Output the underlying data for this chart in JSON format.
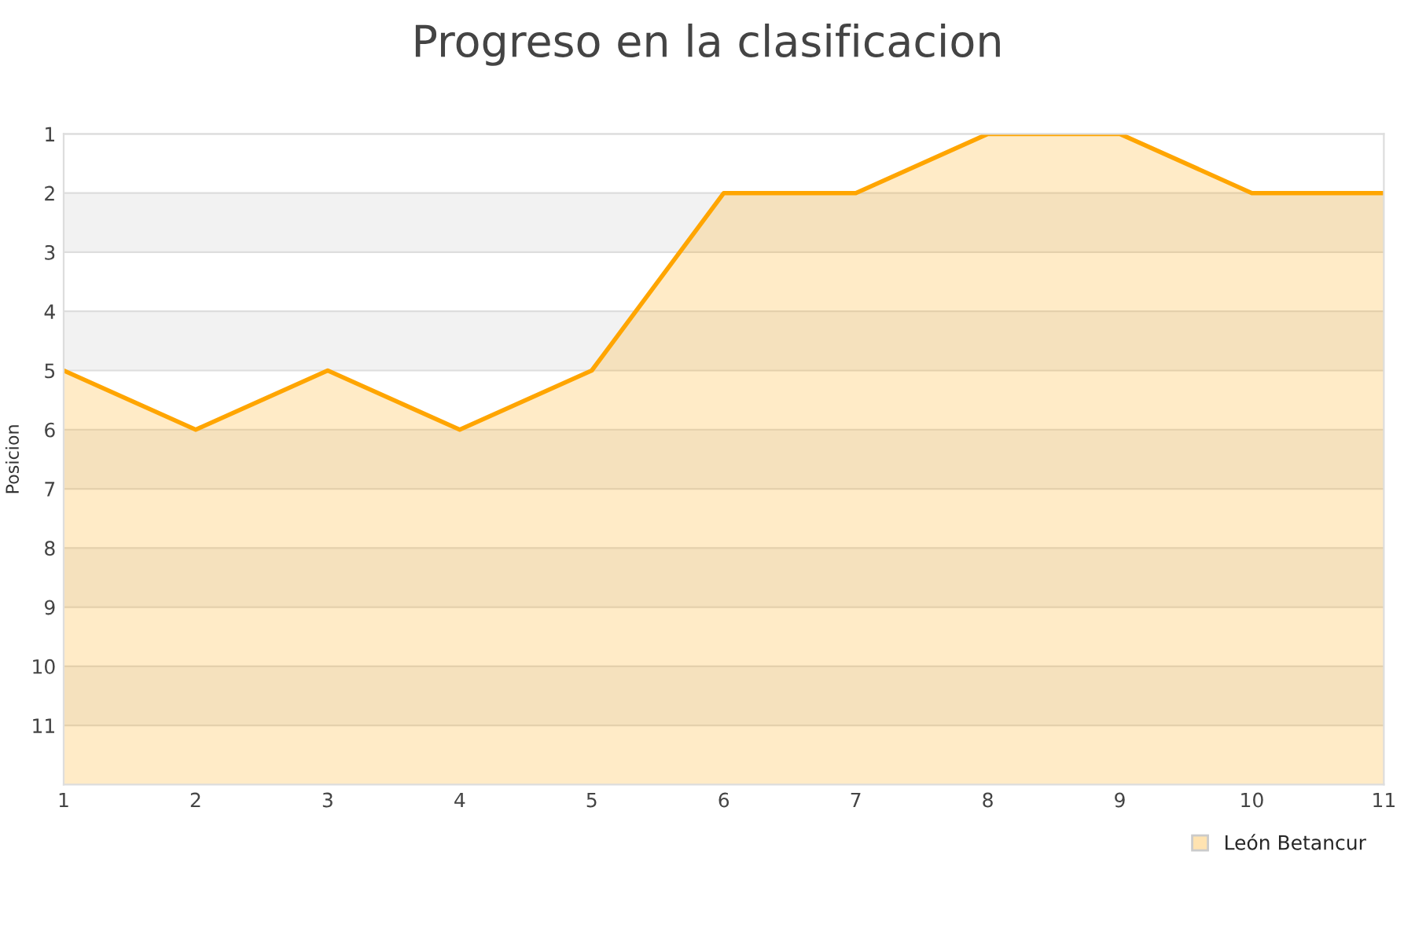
{
  "chart_data": {
    "type": "line",
    "title": "Progreso en la clasificacion",
    "ylabel": "Posicion",
    "x": [
      1,
      2,
      3,
      4,
      5,
      6,
      7,
      8,
      9,
      10,
      11
    ],
    "series": [
      {
        "name": "León Betancur",
        "color": "#ffa500",
        "values": [
          5,
          6,
          5,
          6,
          5,
          2,
          2,
          1,
          1,
          2,
          2
        ],
        "lower": [
          5,
          6,
          5,
          6,
          5,
          2,
          2,
          1,
          1,
          2,
          2
        ],
        "upper": [
          12,
          12,
          12,
          12,
          12,
          12,
          12,
          12,
          12,
          12,
          12
        ]
      }
    ],
    "xlim": [
      1,
      11
    ],
    "xticks": [
      1,
      2,
      3,
      4,
      5,
      6,
      7,
      8,
      9,
      10,
      11
    ],
    "ylim": [
      12,
      1
    ],
    "yticks": [
      1,
      2,
      3,
      4,
      5,
      6,
      7,
      8,
      9,
      10,
      11
    ],
    "bands": [
      {
        "axis": "y",
        "from": 2,
        "to": 3,
        "color": "#f2f2f2"
      },
      {
        "axis": "y",
        "from": 4,
        "to": 5,
        "color": "#f2f2f2"
      },
      {
        "axis": "y",
        "from": 6,
        "to": 7,
        "color": "#f2f2f2"
      },
      {
        "axis": "y",
        "from": 8,
        "to": 9,
        "color": "#f2f2f2"
      },
      {
        "axis": "y",
        "from": 10,
        "to": 11,
        "color": "#f2f2f2"
      }
    ],
    "grid": "y",
    "legend": "bottom right",
    "line_style": "solid"
  }
}
